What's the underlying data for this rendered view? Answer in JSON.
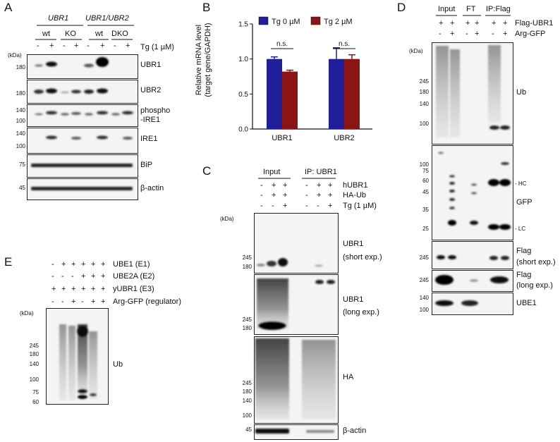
{
  "panelA": {
    "label": "A",
    "genotype_group1": "UBR1",
    "genotype_group2": "UBR1/UBR2",
    "genotypes": [
      "wt",
      "KO",
      "wt",
      "DKO"
    ],
    "treatment_label": "Tg (1 µM)",
    "lane_signs": [
      "-",
      "+",
      "-",
      "+",
      "-",
      "+",
      "-",
      "+"
    ],
    "kda_label": "(kDa)",
    "blots": [
      {
        "name": "UBR1",
        "markers": [
          "180"
        ]
      },
      {
        "name": "UBR2",
        "markers": [
          "180"
        ]
      },
      {
        "name": "phospho-IRE1",
        "line1": "phospho",
        "line2": "-IRE1",
        "markers": [
          "140",
          "100"
        ]
      },
      {
        "name": "IRE1",
        "markers": [
          "140",
          "100"
        ]
      },
      {
        "name": "BiP",
        "markers": [
          "75"
        ]
      },
      {
        "name": "β-actin",
        "markers": [
          "45"
        ]
      }
    ]
  },
  "panelB": {
    "label": "B",
    "ylabel_line1": "Relative mRNA level",
    "ylabel_line2": "(target gene/GAPDH)",
    "significance": [
      "n.s.",
      "n.s."
    ]
  },
  "chart_data": {
    "type": "bar",
    "categories": [
      "UBR1",
      "UBR2"
    ],
    "series": [
      {
        "name": "Tg 0 µM",
        "color": "#1f1f9a",
        "values": [
          1.0,
          1.0
        ],
        "errors": [
          0.03,
          0.16
        ]
      },
      {
        "name": "Tg 2 µM",
        "color": "#8b1414",
        "values": [
          0.82,
          1.0
        ],
        "errors": [
          0.02,
          0.06
        ]
      }
    ],
    "ylim": [
      0,
      1.5
    ],
    "yticks": [
      "0.0",
      "0.5",
      "1.0",
      "1.5"
    ],
    "legend_position": "top"
  },
  "panelC": {
    "label": "C",
    "group_input": "Input",
    "group_ip": "IP: UBR1",
    "rows": [
      {
        "label": "hUBR1",
        "signs": [
          "-",
          "+",
          "+",
          "-",
          "+",
          "+"
        ]
      },
      {
        "label": "HA-Ub",
        "signs": [
          "-",
          "+",
          "+",
          "-",
          "+",
          "+"
        ]
      },
      {
        "label": "Tg (1 µM)",
        "signs": [
          "-",
          "-",
          "+",
          "-",
          "-",
          "+"
        ]
      }
    ],
    "kda_label": "(kDa)",
    "blots": [
      {
        "name": "UBR1 (short exp.)",
        "line1": "UBR1",
        "line2": "(short exp.)",
        "markers": [
          "245",
          "180"
        ]
      },
      {
        "name": "UBR1 (long exp.)",
        "line1": "UBR1",
        "line2": "(long exp.)",
        "markers": [
          "245",
          "180"
        ]
      },
      {
        "name": "HA",
        "markers": [
          "245",
          "180",
          "140",
          "100"
        ]
      },
      {
        "name": "β-actin",
        "markers": [
          "45"
        ]
      }
    ]
  },
  "panelD": {
    "label": "D",
    "groups": [
      "Input",
      "FT",
      "IP:Flag"
    ],
    "rows": [
      {
        "label": "Flag-UBR1",
        "signs": [
          "+",
          "+",
          "+",
          "+",
          "+",
          "+"
        ]
      },
      {
        "label": "Arg-GFP",
        "signs": [
          "-",
          "+",
          "-",
          "+",
          "-",
          "+"
        ]
      }
    ],
    "kda_label": "(kDa)",
    "blots": [
      {
        "name": "Ub",
        "markers": [
          "245",
          "180",
          "140",
          "100"
        ]
      },
      {
        "name": "GFP",
        "markers": [
          "100",
          "75",
          "60",
          "45",
          "35",
          "25"
        ],
        "annotations": [
          "- HC",
          "- LC"
        ]
      },
      {
        "name": "Flag (short exp.)",
        "line1": "Flag",
        "line2": "(short exp.)",
        "markers": [
          "245"
        ]
      },
      {
        "name": "Flag (long exp.)",
        "line1": "Flag",
        "line2": "(long exp.)",
        "markers": [
          "245"
        ]
      },
      {
        "name": "UBE1",
        "markers": [
          "140",
          "100"
        ]
      }
    ]
  },
  "panelE": {
    "label": "E",
    "rows": [
      {
        "label": "UBE1 (E1)",
        "signs": [
          "-",
          "+",
          "+",
          "+",
          "+",
          "+"
        ]
      },
      {
        "label": "UBE2A (E2)",
        "signs": [
          "-",
          "-",
          "-",
          "+",
          "+",
          "+"
        ]
      },
      {
        "label": "yUBR1 (E3)",
        "signs": [
          "+",
          "+",
          "+",
          "+",
          "+",
          "+"
        ]
      },
      {
        "label": "Arg-GFP (regulator)",
        "signs": [
          "-",
          "-",
          "+",
          "-",
          "+",
          "+"
        ]
      }
    ],
    "kda_label": "(kDa)",
    "blot": {
      "name": "Ub",
      "markers": [
        "245",
        "180",
        "140",
        "100",
        "75",
        "60"
      ]
    }
  }
}
